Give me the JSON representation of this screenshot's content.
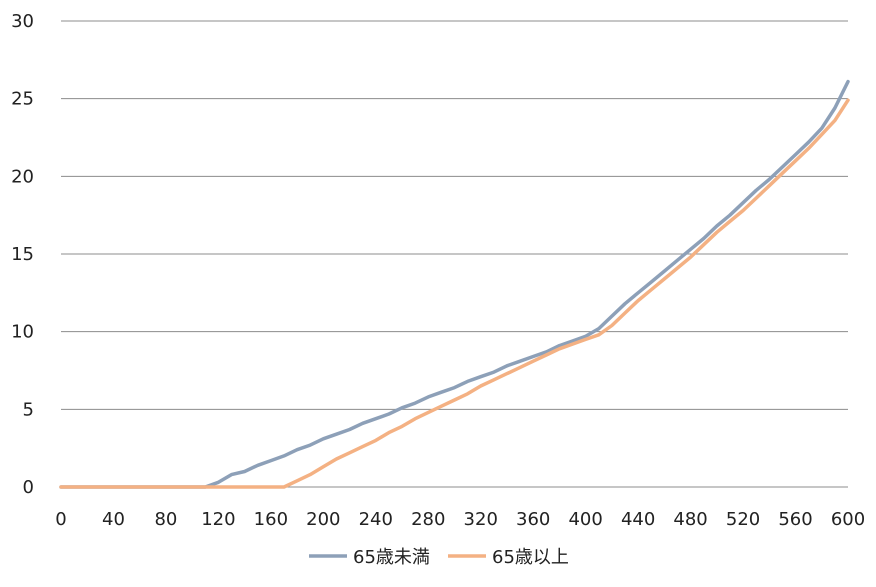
{
  "chart_data": {
    "type": "line",
    "title": "",
    "xlabel": "",
    "ylabel": "",
    "xlim": [
      0,
      600
    ],
    "ylim": [
      0,
      30
    ],
    "x_ticks": [
      0,
      40,
      80,
      120,
      160,
      200,
      240,
      280,
      320,
      360,
      400,
      440,
      480,
      520,
      560,
      600
    ],
    "y_ticks": [
      0,
      5,
      10,
      15,
      20,
      25,
      30
    ],
    "grid": "horizontal",
    "legend_position": "bottom",
    "x": [
      0,
      10,
      20,
      30,
      40,
      50,
      60,
      70,
      80,
      90,
      100,
      110,
      120,
      130,
      140,
      150,
      160,
      170,
      180,
      190,
      200,
      210,
      220,
      230,
      240,
      250,
      260,
      270,
      280,
      290,
      300,
      310,
      320,
      330,
      340,
      350,
      360,
      370,
      380,
      390,
      400,
      410,
      420,
      430,
      440,
      450,
      460,
      470,
      480,
      490,
      500,
      510,
      520,
      530,
      540,
      550,
      560,
      570,
      580,
      590,
      600
    ],
    "series": [
      {
        "name": "65歳未満",
        "color": "#8da0b8",
        "values": [
          0,
          0,
          0,
          0,
          0,
          0,
          0,
          0,
          0,
          0,
          0,
          0,
          0.3,
          0.8,
          1.0,
          1.4,
          1.7,
          2.0,
          2.4,
          2.7,
          3.1,
          3.4,
          3.7,
          4.1,
          4.4,
          4.7,
          5.1,
          5.4,
          5.8,
          6.1,
          6.4,
          6.8,
          7.1,
          7.4,
          7.8,
          8.1,
          8.4,
          8.7,
          9.1,
          9.4,
          9.7,
          10.2,
          11.0,
          11.8,
          12.5,
          13.2,
          13.9,
          14.6,
          15.3,
          16.0,
          16.8,
          17.5,
          18.3,
          19.1,
          19.8,
          20.6,
          21.4,
          22.2,
          23.1,
          24.4,
          26.1
        ]
      },
      {
        "name": "65歳以上",
        "color": "#f4b183",
        "values": [
          0,
          0,
          0,
          0,
          0,
          0,
          0,
          0,
          0,
          0,
          0,
          0,
          0,
          0,
          0,
          0,
          0,
          0,
          0.4,
          0.8,
          1.3,
          1.8,
          2.2,
          2.6,
          3.0,
          3.5,
          3.9,
          4.4,
          4.8,
          5.2,
          5.6,
          6.0,
          6.5,
          6.9,
          7.3,
          7.7,
          8.1,
          8.5,
          8.9,
          9.2,
          9.5,
          9.8,
          10.4,
          11.2,
          12.0,
          12.7,
          13.4,
          14.1,
          14.8,
          15.6,
          16.4,
          17.1,
          17.8,
          18.6,
          19.4,
          20.2,
          21.0,
          21.8,
          22.7,
          23.6,
          24.9
        ]
      }
    ]
  }
}
